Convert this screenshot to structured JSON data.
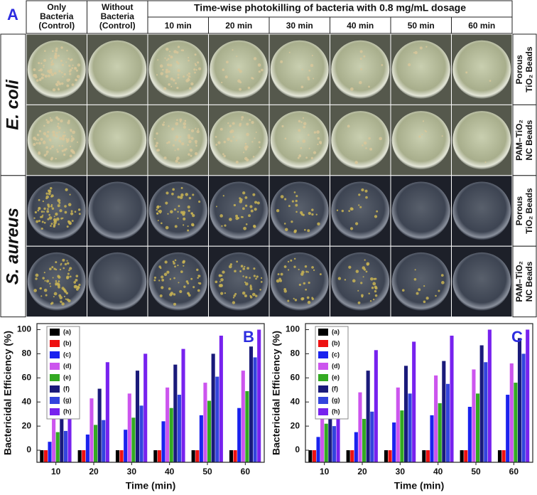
{
  "panel_a": {
    "label": "A",
    "headers": [
      [
        "Only",
        "Bacteria",
        "(Control)"
      ],
      [
        "Without",
        "Bacteria",
        "(Control)"
      ]
    ],
    "group_header": "Time-wise photokilling of bacteria with 0.8 mg/mL dosage",
    "times": [
      "10 min",
      "20 min",
      "30 min",
      "40 min",
      "50 min",
      "60 min"
    ],
    "rows": [
      {
        "organism": "E. coli",
        "materials": [
          [
            "Porous",
            "TiO₂ Beads"
          ],
          [
            "PAM–TiO₂",
            "NC Beads"
          ]
        ]
      },
      {
        "organism": "S. aureus",
        "materials": [
          [
            "Porous",
            "TiO₂ Beads"
          ],
          [
            "PAM–TiO₂",
            "NC Beads"
          ]
        ]
      }
    ]
  },
  "chart_data": [
    {
      "type": "bar",
      "panel_label": "B",
      "ylabel": "Bactericidal Efficiency (%)",
      "xlabel": "Time (min)",
      "categories": [
        "10",
        "20",
        "30",
        "40",
        "50",
        "60"
      ],
      "ylim": [
        -10,
        105
      ],
      "yticks": [
        0,
        20,
        40,
        60,
        80,
        100
      ],
      "series": [
        {
          "name": "(a)",
          "color": "#000000",
          "values": [
            0,
            0,
            0,
            0,
            0,
            0
          ]
        },
        {
          "name": "(b)",
          "color": "#ee1111",
          "values": [
            0,
            0,
            0,
            0,
            0,
            0
          ]
        },
        {
          "name": "(c)",
          "color": "#1a22ee",
          "values": [
            7,
            13,
            17,
            24,
            29,
            35
          ]
        },
        {
          "name": "(d)",
          "color": "#cc55ee",
          "values": [
            33,
            43,
            47,
            52,
            56,
            66
          ]
        },
        {
          "name": "(e)",
          "color": "#33aa22",
          "values": [
            15,
            21,
            27,
            35,
            41,
            49
          ]
        },
        {
          "name": "(f)",
          "color": "#1a1a7a",
          "values": [
            39,
            51,
            66,
            71,
            80,
            86
          ]
        },
        {
          "name": "(g)",
          "color": "#3344dd",
          "values": [
            16,
            25,
            37,
            46,
            61,
            77
          ]
        },
        {
          "name": "(h)",
          "color": "#7722ee",
          "values": [
            64,
            73,
            80,
            84,
            95,
            100
          ]
        }
      ]
    },
    {
      "type": "bar",
      "panel_label": "C",
      "ylabel": "Bactericidal Efficiency (%)",
      "xlabel": "Time (min)",
      "categories": [
        "10",
        "20",
        "30",
        "40",
        "50",
        "60"
      ],
      "ylim": [
        -10,
        105
      ],
      "yticks": [
        0,
        20,
        40,
        60,
        80,
        100
      ],
      "series": [
        {
          "name": "(a)",
          "color": "#000000",
          "values": [
            0,
            0,
            0,
            0,
            0,
            0
          ]
        },
        {
          "name": "(b)",
          "color": "#ee1111",
          "values": [
            0,
            0,
            0,
            0,
            0,
            0
          ]
        },
        {
          "name": "(c)",
          "color": "#1a22ee",
          "values": [
            11,
            15,
            23,
            29,
            36,
            46
          ]
        },
        {
          "name": "(d)",
          "color": "#cc55ee",
          "values": [
            46,
            48,
            52,
            62,
            67,
            72
          ]
        },
        {
          "name": "(e)",
          "color": "#33aa22",
          "values": [
            22,
            26,
            33,
            39,
            47,
            56
          ]
        },
        {
          "name": "(f)",
          "color": "#1a1a7a",
          "values": [
            51,
            66,
            70,
            74,
            87,
            93
          ]
        },
        {
          "name": "(g)",
          "color": "#3344dd",
          "values": [
            20,
            32,
            47,
            55,
            73,
            80
          ]
        },
        {
          "name": "(h)",
          "color": "#7722ee",
          "values": [
            75,
            83,
            90,
            95,
            100,
            100
          ]
        }
      ]
    }
  ]
}
